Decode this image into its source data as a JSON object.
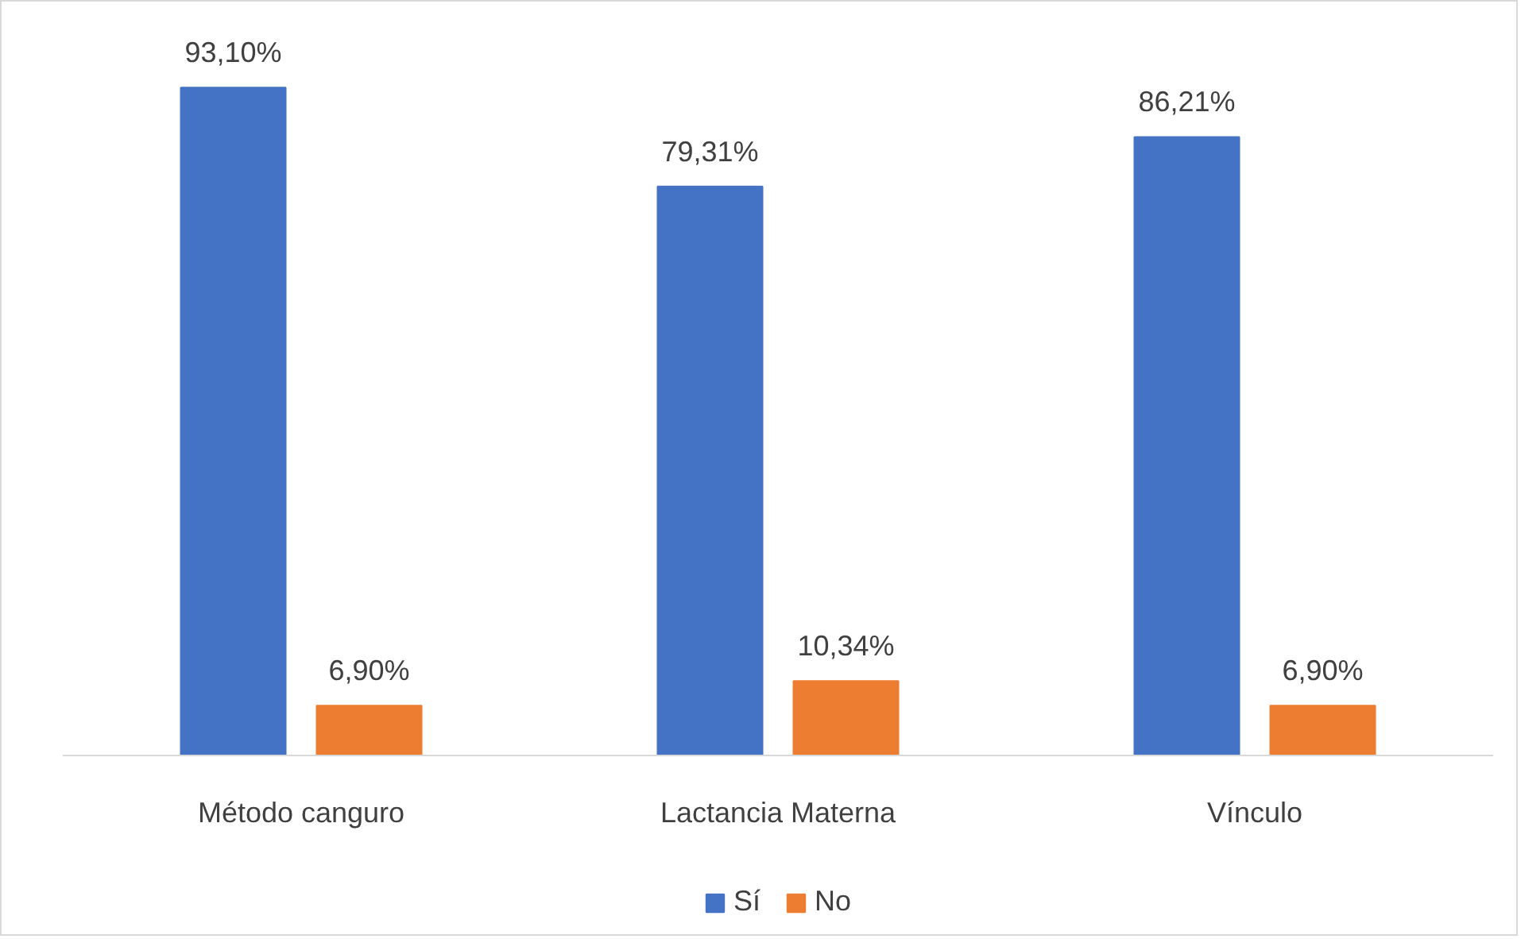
{
  "chart_data": {
    "type": "bar",
    "categories": [
      "Método canguro",
      "Lactancia Materna",
      "Vínculo"
    ],
    "series": [
      {
        "name": "Sí",
        "color": "#4472c4",
        "values": [
          93.1,
          79.31,
          86.21
        ],
        "value_labels": [
          "93,10%",
          "79,31%",
          "86,21%"
        ]
      },
      {
        "name": "No",
        "color": "#ed7d31",
        "values": [
          6.9,
          10.34,
          6.9
        ],
        "value_labels": [
          "6,90%",
          "10,34%",
          "6,90%"
        ]
      }
    ],
    "grid": false,
    "legend": "bottom"
  }
}
